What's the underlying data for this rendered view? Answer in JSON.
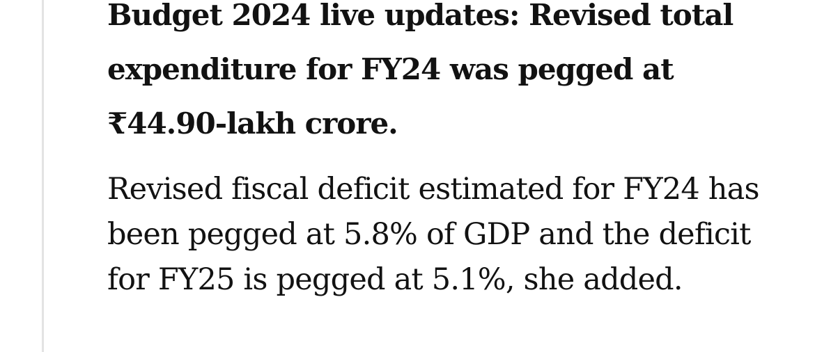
{
  "article": {
    "headline": "Budget 2024 live updates: Revised total expenditure for FY24 was pegged at ₹44.90-lakh crore.",
    "paragraph": "Revised fiscal deficit estimated for FY24 has been pegged at 5.8% of GDP and the deficit for FY25 is pegged at 5.1%, she added."
  }
}
